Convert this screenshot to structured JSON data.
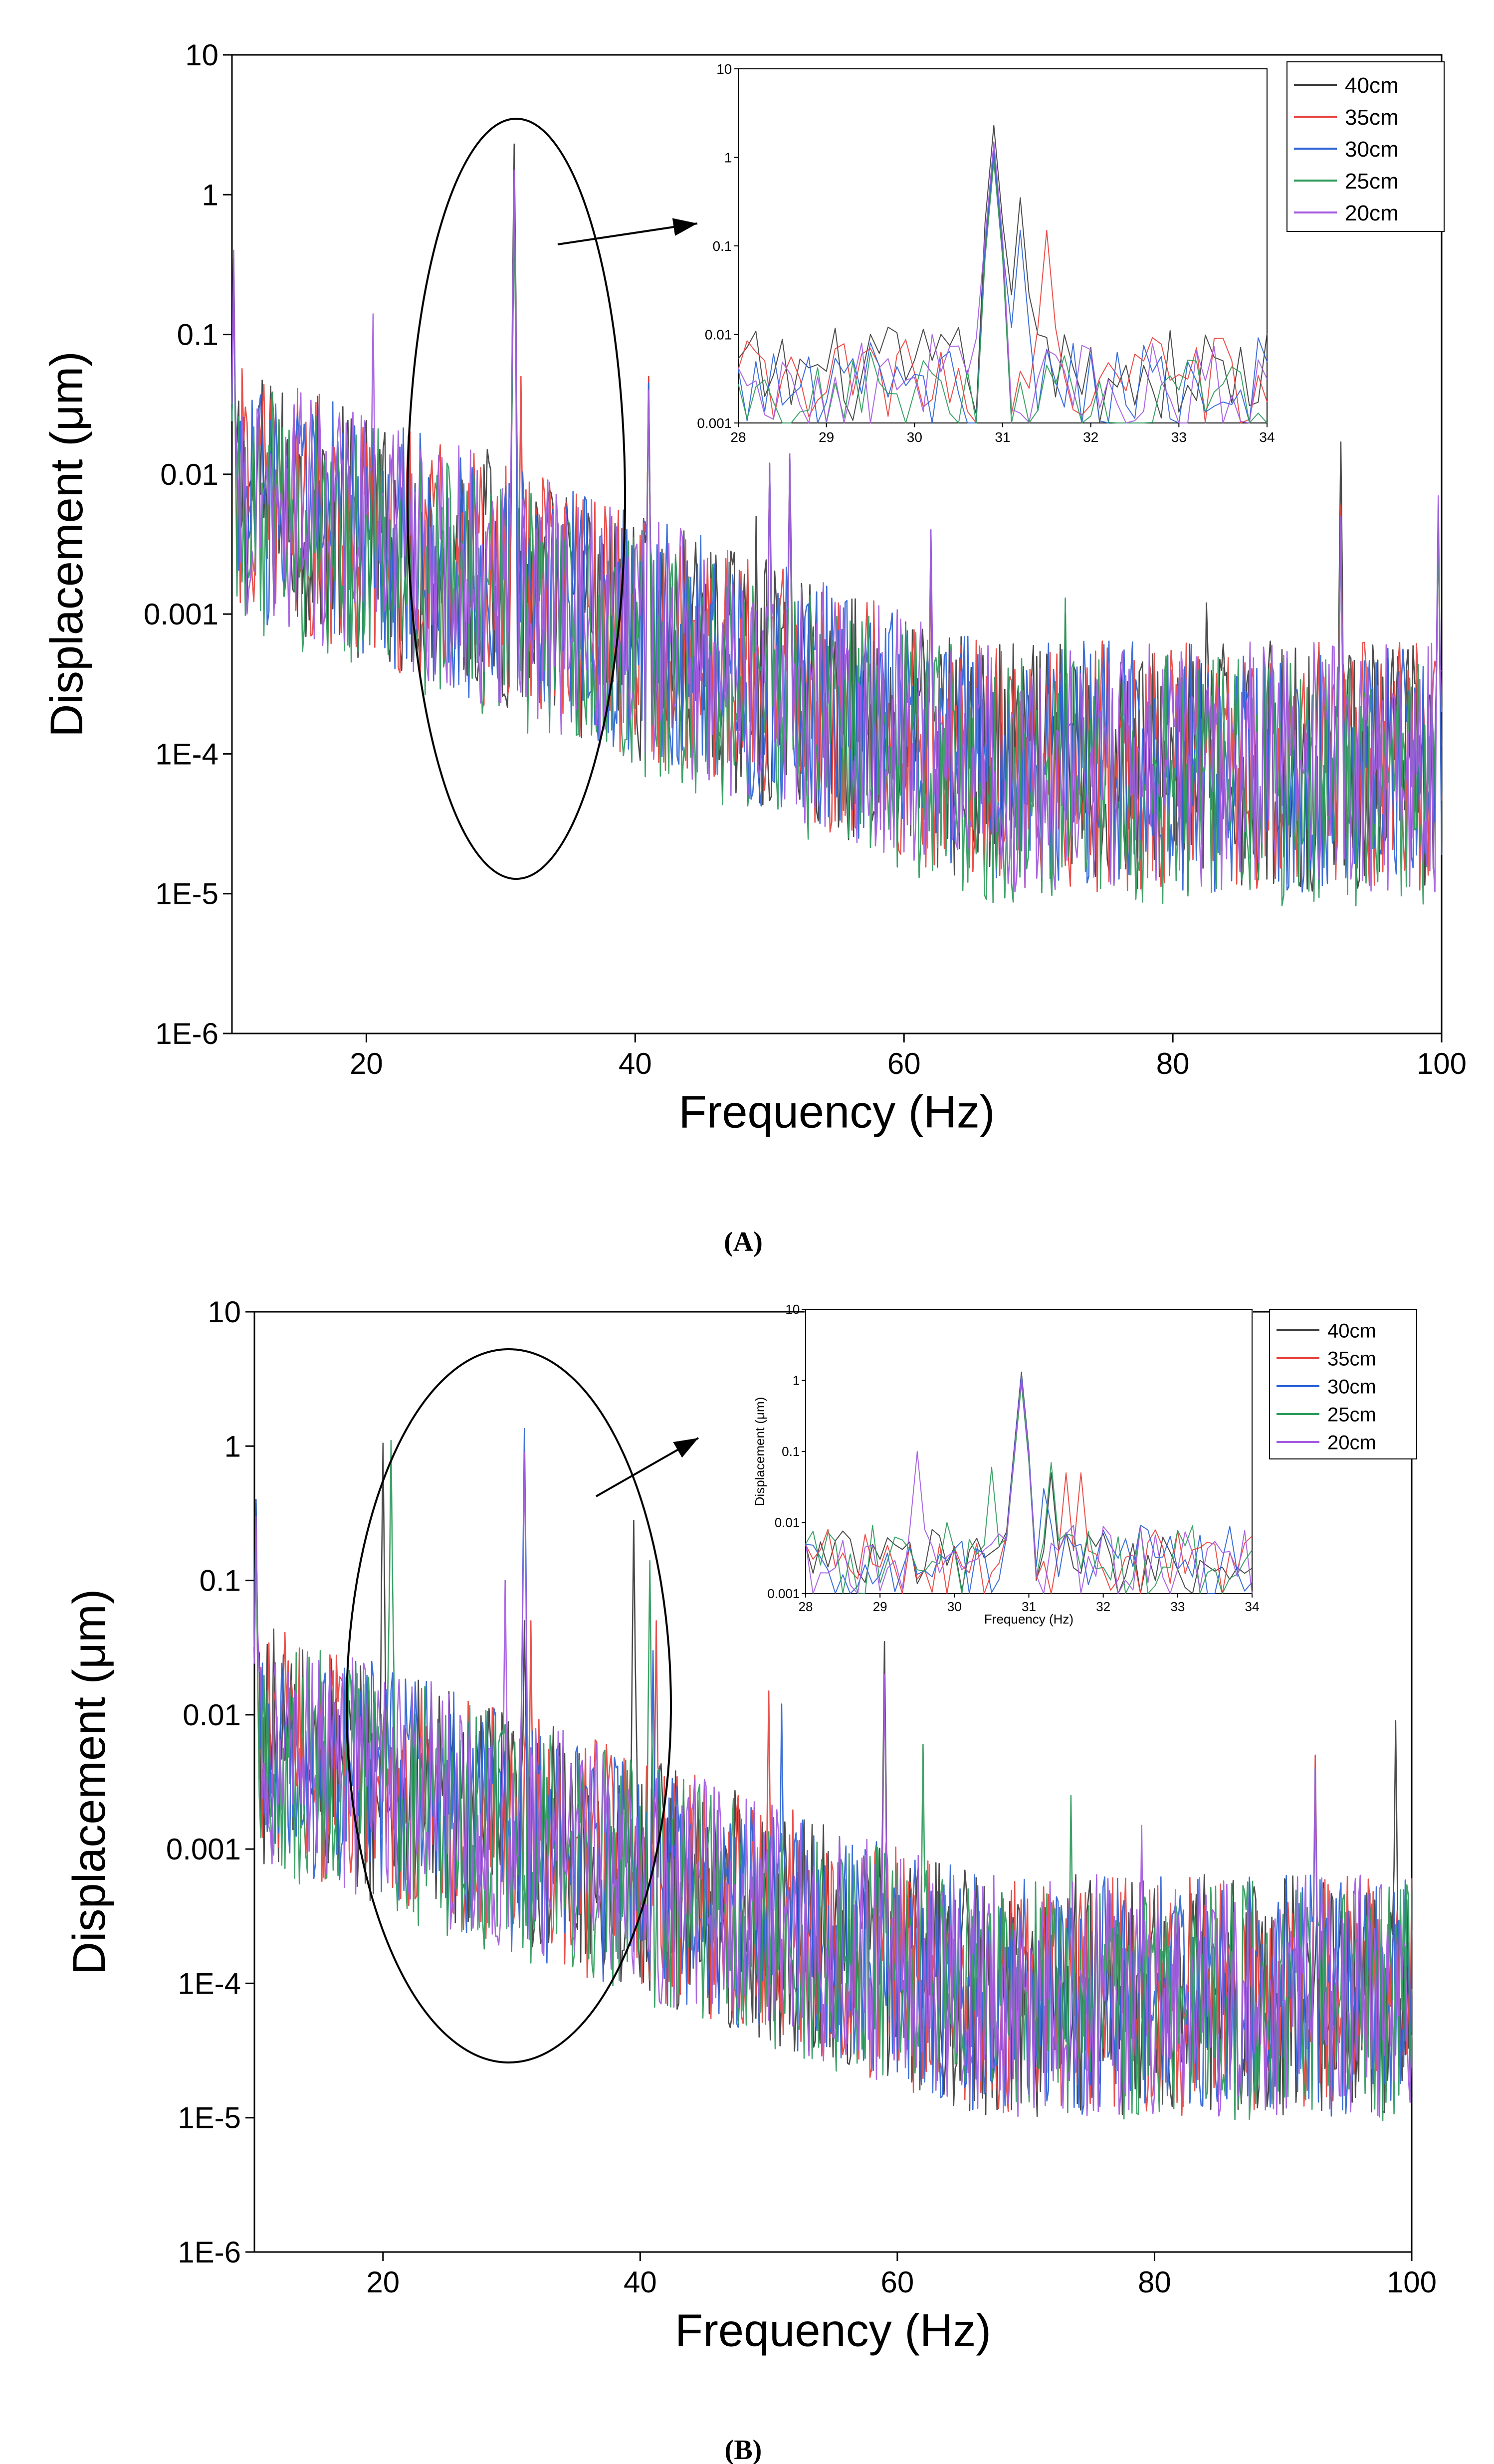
{
  "figure": {
    "panel_labels": [
      "(A)",
      "(B)"
    ]
  },
  "legend": {
    "entries": [
      "40cm",
      "35cm",
      "30cm",
      "25cm",
      "20cm"
    ]
  },
  "series_colors": {
    "40cm": "#3c3c3c",
    "35cm": "#e8413c",
    "30cm": "#2b63d6",
    "25cm": "#2e9b5b",
    "20cm": "#a45be0"
  },
  "chart_data": [
    {
      "id": "A-main",
      "type": "line",
      "panel": "A",
      "title": "",
      "xlabel": "Frequency (Hz)",
      "ylabel": "Displacement (μm)",
      "xlim": [
        10,
        100
      ],
      "ylim": [
        1e-06,
        10
      ],
      "yscale": "log",
      "xticks": [
        20,
        40,
        60,
        80,
        100
      ],
      "xtick_labels": [
        "20",
        "40",
        "60",
        "80",
        "100"
      ],
      "yticks": [
        1e-06,
        1e-05,
        0.0001,
        0.001,
        0.01,
        0.1,
        1,
        10
      ],
      "ytick_labels": [
        "1E-6",
        "1E-5",
        "1E-4",
        "0.001",
        "0.01",
        "0.1",
        "1",
        "10"
      ],
      "annotation": "ellipse around 31 Hz peak with arrow to inset",
      "series": [
        {
          "name": "40cm",
          "peaks": [
            [
              10.1,
              0.35
            ],
            [
              31,
              2.3
            ],
            [
              29,
              0.015
            ],
            [
              41,
              0.05
            ],
            [
              49,
              0.005
            ],
            [
              51.5,
              0.013
            ],
            [
              62,
              0.003
            ],
            [
              72,
              0.001
            ],
            [
              82.5,
              0.0012
            ],
            [
              92.5,
              0.017
            ],
            [
              99.8,
              0.005
            ]
          ],
          "base_start": 0.01,
          "base_end": 0.0001
        },
        {
          "name": "35cm",
          "peaks": [
            [
              10.1,
              0.3
            ],
            [
              31,
              1.0
            ],
            [
              31.5,
              0.05
            ],
            [
              41,
              0.05
            ],
            [
              50,
              0.012
            ],
            [
              51.5,
              0.012
            ],
            [
              62,
              0.003
            ],
            [
              92.5,
              0.006
            ],
            [
              99.8,
              0.005
            ]
          ],
          "base_start": 0.01,
          "base_end": 0.0001
        },
        {
          "name": "30cm",
          "peaks": [
            [
              10.1,
              0.3
            ],
            [
              31,
              1.1
            ],
            [
              41,
              0.045
            ],
            [
              50,
              0.012
            ],
            [
              51.5,
              0.013
            ],
            [
              62,
              0.004
            ],
            [
              92.5,
              0.005
            ],
            [
              99.8,
              0.006
            ]
          ],
          "base_start": 0.01,
          "base_end": 0.0001
        },
        {
          "name": "25cm",
          "peaks": [
            [
              10.1,
              0.3
            ],
            [
              31,
              0.9
            ],
            [
              41,
              0.04
            ],
            [
              50,
              0.01
            ],
            [
              51.5,
              0.012
            ],
            [
              72,
              0.0013
            ],
            [
              92.5,
              0.005
            ],
            [
              99.8,
              0.005
            ]
          ],
          "base_start": 0.008,
          "base_end": 8e-05
        },
        {
          "name": "20cm",
          "peaks": [
            [
              10.1,
              0.4
            ],
            [
              20.5,
              0.14
            ],
            [
              31,
              1.5
            ],
            [
              41,
              0.04
            ],
            [
              50,
              0.012
            ],
            [
              51.5,
              0.014
            ],
            [
              62,
              0.004
            ],
            [
              92.5,
              0.005
            ],
            [
              99.8,
              0.007
            ]
          ],
          "base_start": 0.01,
          "base_end": 0.0001
        }
      ]
    },
    {
      "id": "A-inset",
      "type": "line",
      "panel": "A",
      "title": "",
      "xlabel": "",
      "ylabel": "",
      "xlim": [
        28,
        34
      ],
      "ylim": [
        0.001,
        10
      ],
      "yscale": "log",
      "xticks": [
        28,
        29,
        30,
        31,
        32,
        33,
        34
      ],
      "xtick_labels": [
        "28",
        "29",
        "30",
        "31",
        "32",
        "33",
        "34"
      ],
      "yticks": [
        0.001,
        0.01,
        0.1,
        1,
        10
      ],
      "ytick_labels": [
        "0.001",
        "0.01",
        "0.1",
        "1",
        "10"
      ],
      "legend_position": "top-right",
      "series": [
        {
          "name": "40cm",
          "peaks": [
            [
              30.9,
              2.3
            ],
            [
              29.5,
              0.01
            ],
            [
              30.5,
              0.012
            ],
            [
              31.2,
              0.35
            ]
          ],
          "base_start": 0.004,
          "base_end": 0.004
        },
        {
          "name": "35cm",
          "peaks": [
            [
              30.9,
              1.0
            ],
            [
              31.5,
              0.15
            ],
            [
              29.4,
              0.006
            ],
            [
              32.5,
              0.006
            ]
          ],
          "base_start": 0.003,
          "base_end": 0.003
        },
        {
          "name": "30cm",
          "peaks": [
            [
              30.9,
              1.2
            ],
            [
              31.2,
              0.15
            ],
            [
              29.5,
              0.008
            ]
          ],
          "base_start": 0.003,
          "base_end": 0.003
        },
        {
          "name": "25cm",
          "peaks": [
            [
              30.9,
              0.9
            ],
            [
              29.3,
              0.005
            ],
            [
              33.2,
              0.005
            ]
          ],
          "base_start": 0.002,
          "base_end": 0.002
        },
        {
          "name": "20cm",
          "peaks": [
            [
              30.9,
              1.5
            ],
            [
              29.4,
              0.008
            ],
            [
              30.2,
              0.01
            ]
          ],
          "base_start": 0.003,
          "base_end": 0.003
        }
      ]
    },
    {
      "id": "B-main",
      "type": "line",
      "panel": "B",
      "title": "",
      "xlabel": "Frequency (Hz)",
      "ylabel": "Displacement (μm)",
      "xlim": [
        10,
        100
      ],
      "ylim": [
        1e-06,
        10
      ],
      "yscale": "log",
      "xticks": [
        20,
        40,
        60,
        80,
        100
      ],
      "xtick_labels": [
        "20",
        "40",
        "60",
        "80",
        "100"
      ],
      "yticks": [
        1e-06,
        1e-05,
        0.0001,
        0.001,
        0.01,
        0.1,
        1,
        10
      ],
      "ytick_labels": [
        "1E-6",
        "1E-5",
        "1E-4",
        "0.001",
        "0.01",
        "0.1",
        "1",
        "10"
      ],
      "annotation": "ellipse around 30 Hz region with arrow to inset",
      "series": [
        {
          "name": "40cm",
          "peaks": [
            [
              10.1,
              0.4
            ],
            [
              20,
              1.05
            ],
            [
              39.5,
              0.28
            ],
            [
              59,
              0.035
            ],
            [
              98.8,
              0.009
            ],
            [
              31,
              0.05
            ]
          ],
          "base_start": 0.008,
          "base_end": 0.0001
        },
        {
          "name": "35cm",
          "peaks": [
            [
              10.1,
              0.3
            ],
            [
              31.5,
              0.05
            ],
            [
              41.2,
              0.05
            ],
            [
              50,
              0.015
            ],
            [
              92.5,
              0.005
            ]
          ],
          "base_start": 0.008,
          "base_end": 0.0001
        },
        {
          "name": "30cm",
          "peaks": [
            [
              10.1,
              0.4
            ],
            [
              31,
              1.35
            ],
            [
              41,
              0.03
            ],
            [
              51,
              0.012
            ],
            [
              92.5,
              0.004
            ]
          ],
          "base_start": 0.008,
          "base_end": 0.0001
        },
        {
          "name": "25cm",
          "peaks": [
            [
              10.1,
              0.3
            ],
            [
              20.6,
              1.1
            ],
            [
              40.8,
              0.14
            ],
            [
              62,
              0.006
            ],
            [
              73.5,
              0.0025
            ],
            [
              92.5,
              0.004
            ]
          ],
          "base_start": 0.007,
          "base_end": 9e-05
        },
        {
          "name": "20cm",
          "peaks": [
            [
              10.1,
              0.3
            ],
            [
              29.5,
              0.1
            ],
            [
              31,
              0.9
            ],
            [
              59,
              0.02
            ],
            [
              79,
              0.0015
            ],
            [
              92.5,
              0.004
            ]
          ],
          "base_start": 0.008,
          "base_end": 0.0001
        }
      ]
    },
    {
      "id": "B-inset",
      "type": "line",
      "panel": "B",
      "title": "",
      "xlabel": "Frequency (Hz)",
      "ylabel": "Displacement (μm)",
      "xlim": [
        28,
        34
      ],
      "ylim": [
        0.001,
        10
      ],
      "yscale": "log",
      "xticks": [
        28,
        29,
        30,
        31,
        32,
        33,
        34
      ],
      "xtick_labels": [
        "28",
        "29",
        "30",
        "31",
        "32",
        "33",
        "34"
      ],
      "yticks": [
        0.001,
        0.01,
        0.1,
        1,
        10
      ],
      "ytick_labels": [
        "0.001",
        "0.01",
        "0.1",
        "1",
        "10"
      ],
      "legend_position": "top-right",
      "series": [
        {
          "name": "40cm",
          "peaks": [
            [
              30.9,
              1.3
            ],
            [
              31.3,
              0.05
            ],
            [
              29.3,
              0.004
            ]
          ],
          "base_start": 0.003,
          "base_end": 0.003
        },
        {
          "name": "35cm",
          "peaks": [
            [
              30.9,
              1.0
            ],
            [
              31.5,
              0.05
            ],
            [
              31.7,
              0.05
            ],
            [
              29.8,
              0.005
            ]
          ],
          "base_start": 0.003,
          "base_end": 0.003
        },
        {
          "name": "30cm",
          "peaks": [
            [
              30.9,
              1.2
            ],
            [
              31.2,
              0.03
            ],
            [
              33.3,
              0.005
            ]
          ],
          "base_start": 0.003,
          "base_end": 0.003
        },
        {
          "name": "25cm",
          "peaks": [
            [
              30.9,
              0.9
            ],
            [
              30.5,
              0.06
            ],
            [
              31.3,
              0.07
            ],
            [
              29.9,
              0.01
            ]
          ],
          "base_start": 0.003,
          "base_end": 0.003
        },
        {
          "name": "20cm",
          "peaks": [
            [
              29.5,
              0.1
            ],
            [
              30.9,
              1.1
            ],
            [
              30.5,
              0.005
            ]
          ],
          "base_start": 0.003,
          "base_end": 0.003
        }
      ]
    }
  ]
}
